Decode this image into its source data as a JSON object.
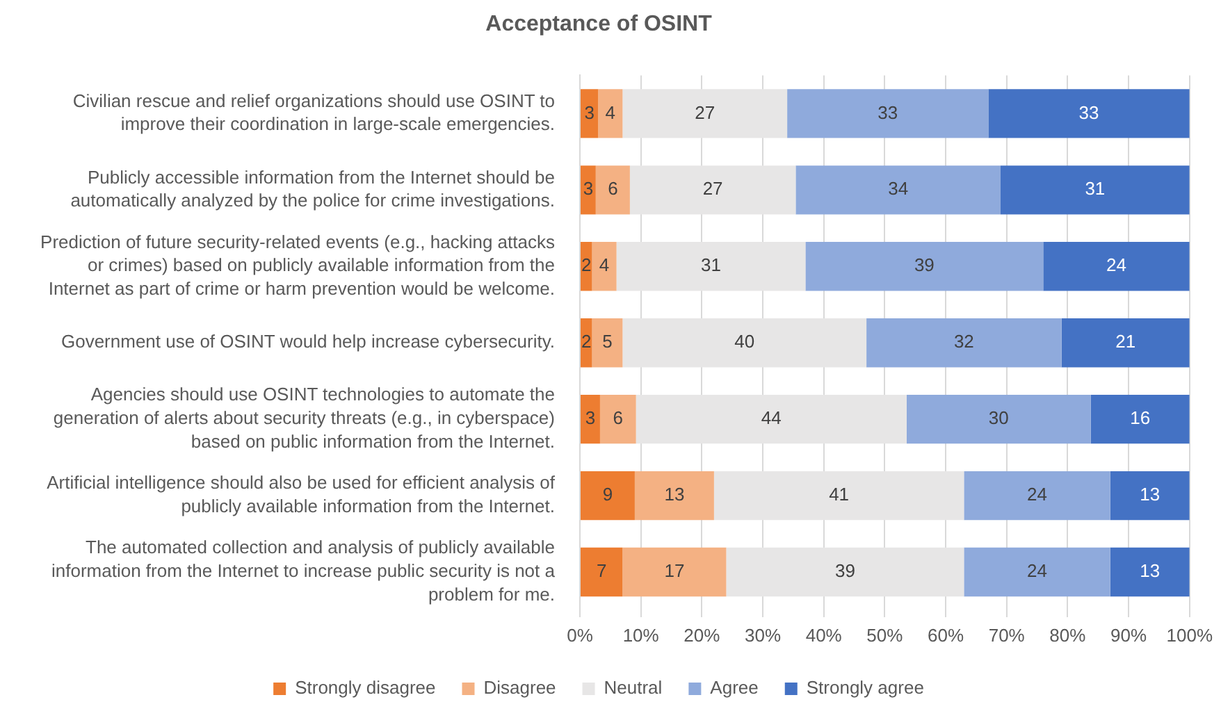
{
  "chart_data": {
    "type": "bar",
    "title": "Acceptance of OSINT",
    "orientation": "horizontal",
    "stacked": true,
    "categories": [
      "Civilian rescue and relief organizations should use OSINT to improve their coordination in large-scale emergencies.",
      "Publicly accessible information from the Internet should be automatically analyzed by the police for crime investigations.",
      "Prediction of future security-related events (e.g., hacking attacks or crimes) based on publicly available information from the Internet as part of crime or harm prevention would be welcome.",
      "Government use of OSINT would help increase cybersecurity.",
      "Agencies should use OSINT technologies to automate the generation of alerts about security threats (e.g., in cyberspace) based on public information from the Internet.",
      "Artificial intelligence should also be used for efficient analysis of publicly available information from the Internet.",
      "The automated collection and analysis of publicly available information from the Internet to increase public security is not a problem for me."
    ],
    "series": [
      {
        "name": "Strongly disagree",
        "color": "#ed7d31",
        "values": [
          3,
          2.6,
          2,
          2,
          3.3,
          9,
          7
        ],
        "value_labels": [
          "3",
          "3",
          "2",
          "2",
          "3",
          "9",
          "7"
        ]
      },
      {
        "name": "Disagree",
        "color": "#f4b183",
        "values": [
          4,
          5.6,
          4,
          5,
          5.9,
          13,
          17
        ],
        "value_labels": [
          "4",
          "6",
          "4",
          "5",
          "6",
          "13",
          "17"
        ]
      },
      {
        "name": "Neutral",
        "color": "#e7e6e6",
        "values": [
          27,
          27.2,
          31,
          40,
          44.4,
          41,
          39
        ],
        "value_labels": [
          "27",
          "27",
          "31",
          "40",
          "44",
          "41",
          "39"
        ]
      },
      {
        "name": "Agree",
        "color": "#8faadc",
        "values": [
          33,
          33.6,
          39,
          32,
          30.2,
          24,
          24
        ],
        "value_labels": [
          "33",
          "34",
          "39",
          "32",
          "30",
          "24",
          "24"
        ]
      },
      {
        "name": "Strongly agree",
        "color": "#4472c4",
        "values": [
          33,
          31,
          24,
          21,
          16.2,
          13,
          13
        ],
        "value_labels": [
          "33",
          "31",
          "24",
          "21",
          "16",
          "13",
          "13"
        ]
      }
    ],
    "xlim": [
      0,
      100
    ],
    "xticks": [
      {
        "value": 0,
        "label": "0%"
      },
      {
        "value": 10,
        "label": "10%"
      },
      {
        "value": 20,
        "label": "20%"
      },
      {
        "value": 30,
        "label": "30%"
      },
      {
        "value": 40,
        "label": "40%"
      },
      {
        "value": 50,
        "label": "50%"
      },
      {
        "value": 60,
        "label": "60%"
      },
      {
        "value": 70,
        "label": "70%"
      },
      {
        "value": 80,
        "label": "80%"
      },
      {
        "value": 90,
        "label": "90%"
      },
      {
        "value": 100,
        "label": "100%"
      }
    ],
    "grid": "x",
    "legend": "bottom"
  }
}
